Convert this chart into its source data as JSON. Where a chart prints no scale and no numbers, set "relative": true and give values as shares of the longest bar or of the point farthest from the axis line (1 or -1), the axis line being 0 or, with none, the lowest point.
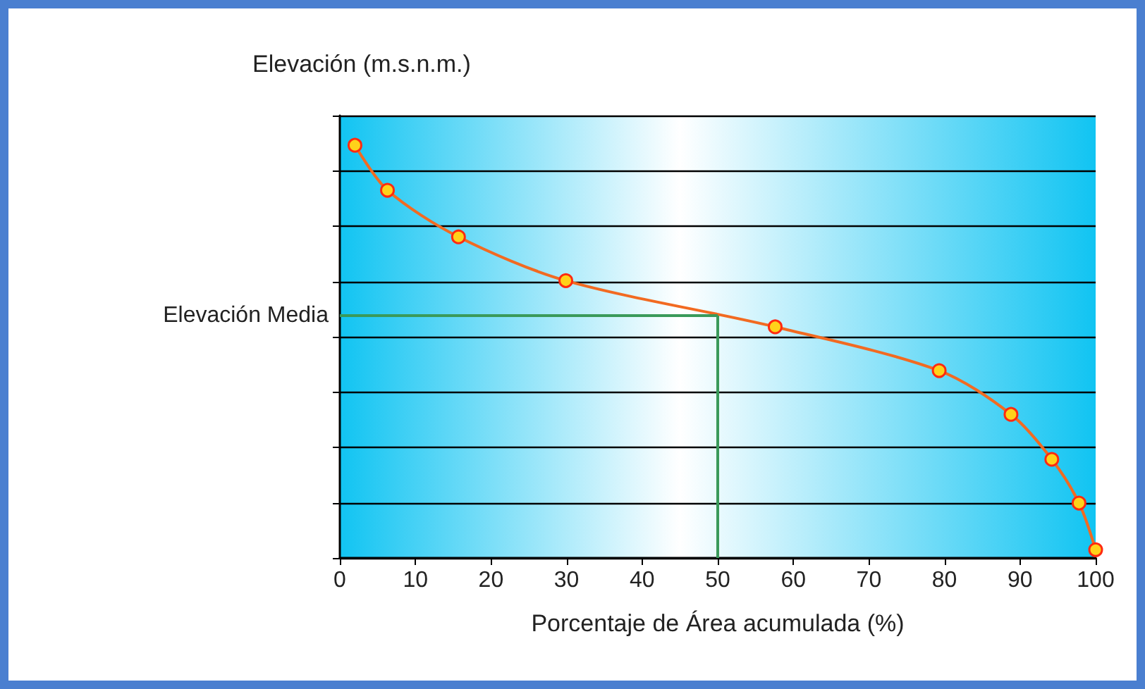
{
  "chart_data": {
    "type": "line",
    "relative": true,
    "ylabel": "Elevación (m.s.n.m.)",
    "xlabel": "Porcentaje de Área acumulada (%)",
    "x": [
      2,
      6.3,
      15.7,
      29.9,
      57.6,
      79.3,
      88.8,
      94.2,
      97.8,
      100
    ],
    "series": [
      {
        "color": "#f26a21",
        "values": [
          1,
          0.891,
          0.778,
          0.672,
          0.56,
          0.454,
          0.348,
          0.239,
          0.133,
          0.02
        ]
      }
    ],
    "xlim": [
      0,
      100
    ],
    "xticks": [
      0,
      10,
      20,
      30,
      40,
      50,
      60,
      70,
      80,
      90,
      100
    ],
    "ref_lines": [
      {
        "axis": "y",
        "value": 0.587,
        "label": "Elevación Media",
        "color": "#3a9a5a"
      },
      {
        "axis": "x",
        "value": 50,
        "color": "#3a9a5a"
      }
    ],
    "marker": "circle",
    "line_style": "solid",
    "grid": "y",
    "tick_labels": "x"
  }
}
